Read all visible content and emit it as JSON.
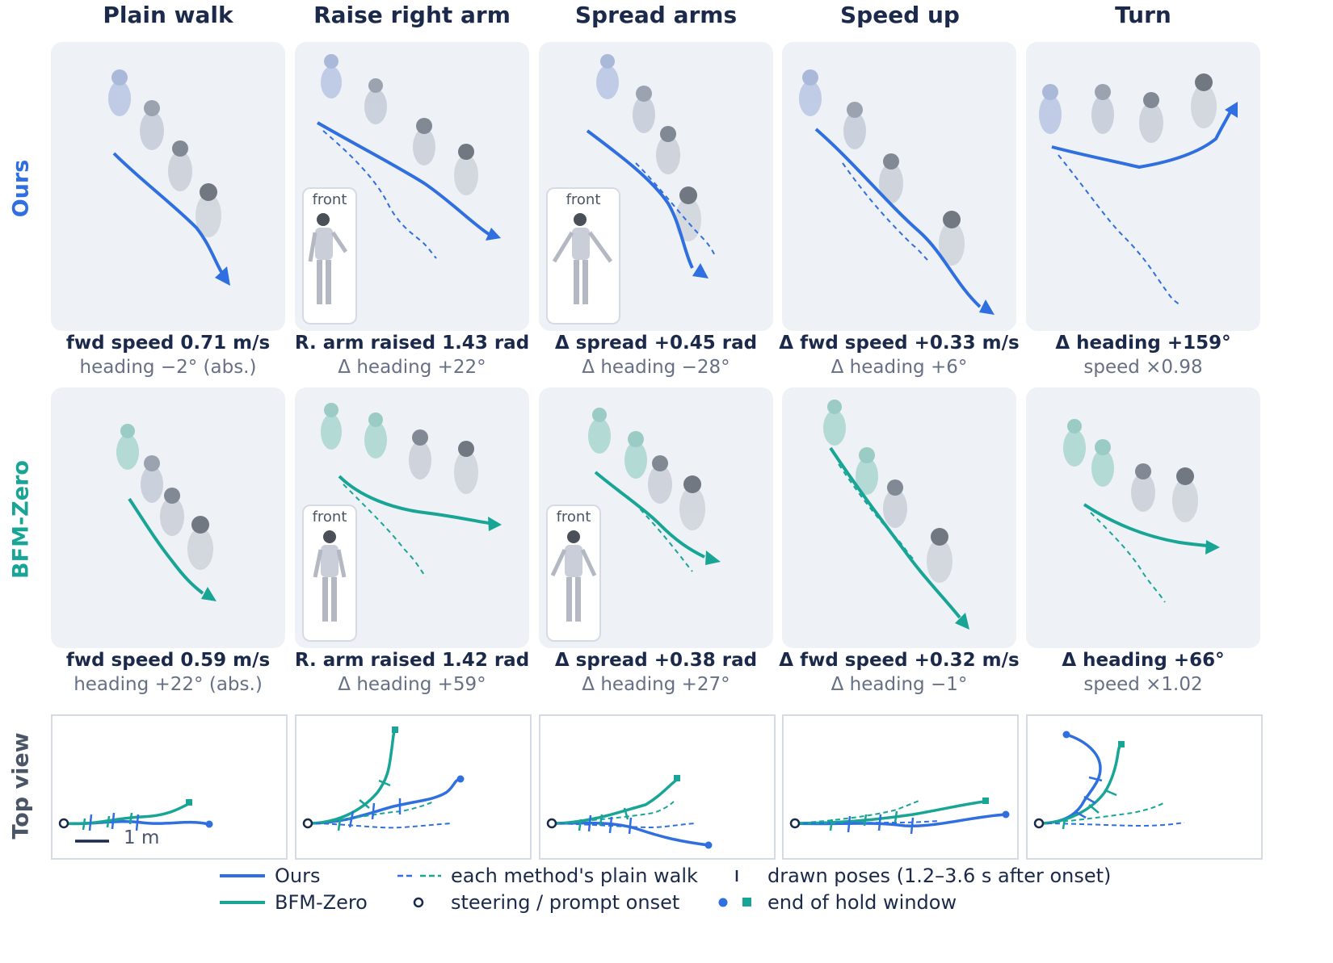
{
  "columns": [
    "Plain walk",
    "Raise right arm",
    "Spread arms",
    "Speed up",
    "Turn"
  ],
  "rows": {
    "ours": {
      "label": "Ours",
      "color": "#2f6fe0"
    },
    "bfm": {
      "label": "BFM-Zero",
      "color": "#18a596"
    },
    "top": {
      "label": "Top view",
      "color": "#4a5568"
    }
  },
  "inset_label": "front",
  "captions": {
    "ours": [
      {
        "main": "fwd speed 0.71 m/s",
        "sub": "heading −2° (abs.)"
      },
      {
        "main": "R. arm raised 1.43 rad",
        "sub": "Δ heading +22°"
      },
      {
        "main": "Δ spread +0.45 rad",
        "sub": "Δ heading −28°"
      },
      {
        "main": "Δ fwd speed +0.33 m/s",
        "sub": "Δ heading +6°"
      },
      {
        "main": "Δ heading +159°",
        "sub": "speed ×0.98"
      }
    ],
    "bfm": [
      {
        "main": "fwd speed 0.59 m/s",
        "sub": "heading +22° (abs.)"
      },
      {
        "main": "R. arm raised 1.42 rad",
        "sub": "Δ heading +59°"
      },
      {
        "main": "Δ spread +0.38 rad",
        "sub": "Δ heading +27°"
      },
      {
        "main": "Δ fwd speed +0.32 m/s",
        "sub": "Δ heading −1°"
      },
      {
        "main": "Δ heading +66°",
        "sub": "speed ×1.02"
      }
    ]
  },
  "scale_bar": "1 m",
  "legend": {
    "ours": "Ours",
    "bfm": "BFM-Zero",
    "plain_walk": "each method's plain walk",
    "onset": "steering / prompt onset",
    "poses": "drawn poses (1.2–3.6 s after onset)",
    "end": "end of hold window"
  },
  "colors": {
    "ours": "#2f6fe0",
    "bfm": "#18a596",
    "text": "#1b2a4a",
    "muted": "#667085"
  }
}
